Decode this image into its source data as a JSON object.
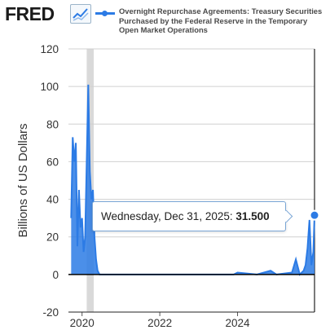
{
  "header": {
    "logo_text": "FRED",
    "legend_label": "Overnight Repurchase Agreements: Treasury Securities Purchased by the Federal Reserve in the Temporary Open Market Operations"
  },
  "tooltip": {
    "date": "Wednesday, Dec 31, 2025:",
    "value": "31.500"
  },
  "colors": {
    "series": "#2c7be5",
    "recession": "#d9d9d9",
    "grid": "#d0d0d0",
    "zero_line": "#000000"
  },
  "chart_data": {
    "type": "area",
    "title": "",
    "xlabel": "",
    "ylabel": "Billions of US Dollars",
    "ylim": [
      -20,
      120
    ],
    "xlim": [
      2019.65,
      2025.98
    ],
    "yticks": [
      -20,
      0,
      20,
      40,
      60,
      80,
      100,
      120
    ],
    "xticks": [
      2020,
      2022,
      2024
    ],
    "grid": true,
    "recession_shading": [
      2020.12,
      2020.3
    ],
    "series": [
      {
        "name": "Overnight Repurchase Agreements: Treasury Securities Purchased by the Federal Reserve in the Temporary Open Market Operations",
        "x": [
          2019.72,
          2019.76,
          2019.8,
          2019.84,
          2019.88,
          2019.92,
          2019.96,
          2020.0,
          2020.04,
          2020.08,
          2020.12,
          2020.16,
          2020.2,
          2020.24,
          2020.28,
          2020.32,
          2020.36,
          2020.4,
          2020.45,
          2021.0,
          2022.0,
          2023.0,
          2023.9,
          2024.0,
          2024.5,
          2024.85,
          2025.0,
          2025.4,
          2025.5,
          2025.6,
          2025.7,
          2025.75,
          2025.8,
          2025.85,
          2025.9,
          2025.95,
          2025.98
        ],
        "values": [
          30,
          73,
          60,
          70,
          15,
          45,
          25,
          30,
          12,
          20,
          60,
          101,
          55,
          40,
          45,
          20,
          8,
          2,
          0,
          0,
          0,
          0,
          0,
          1,
          0,
          2,
          0,
          1,
          8,
          0,
          2,
          5,
          14,
          29,
          5,
          12,
          31.5
        ]
      }
    ],
    "highlight_point": {
      "x": 2025.98,
      "y": 31.5,
      "label": "Wednesday, Dec 31, 2025: 31.500"
    }
  }
}
